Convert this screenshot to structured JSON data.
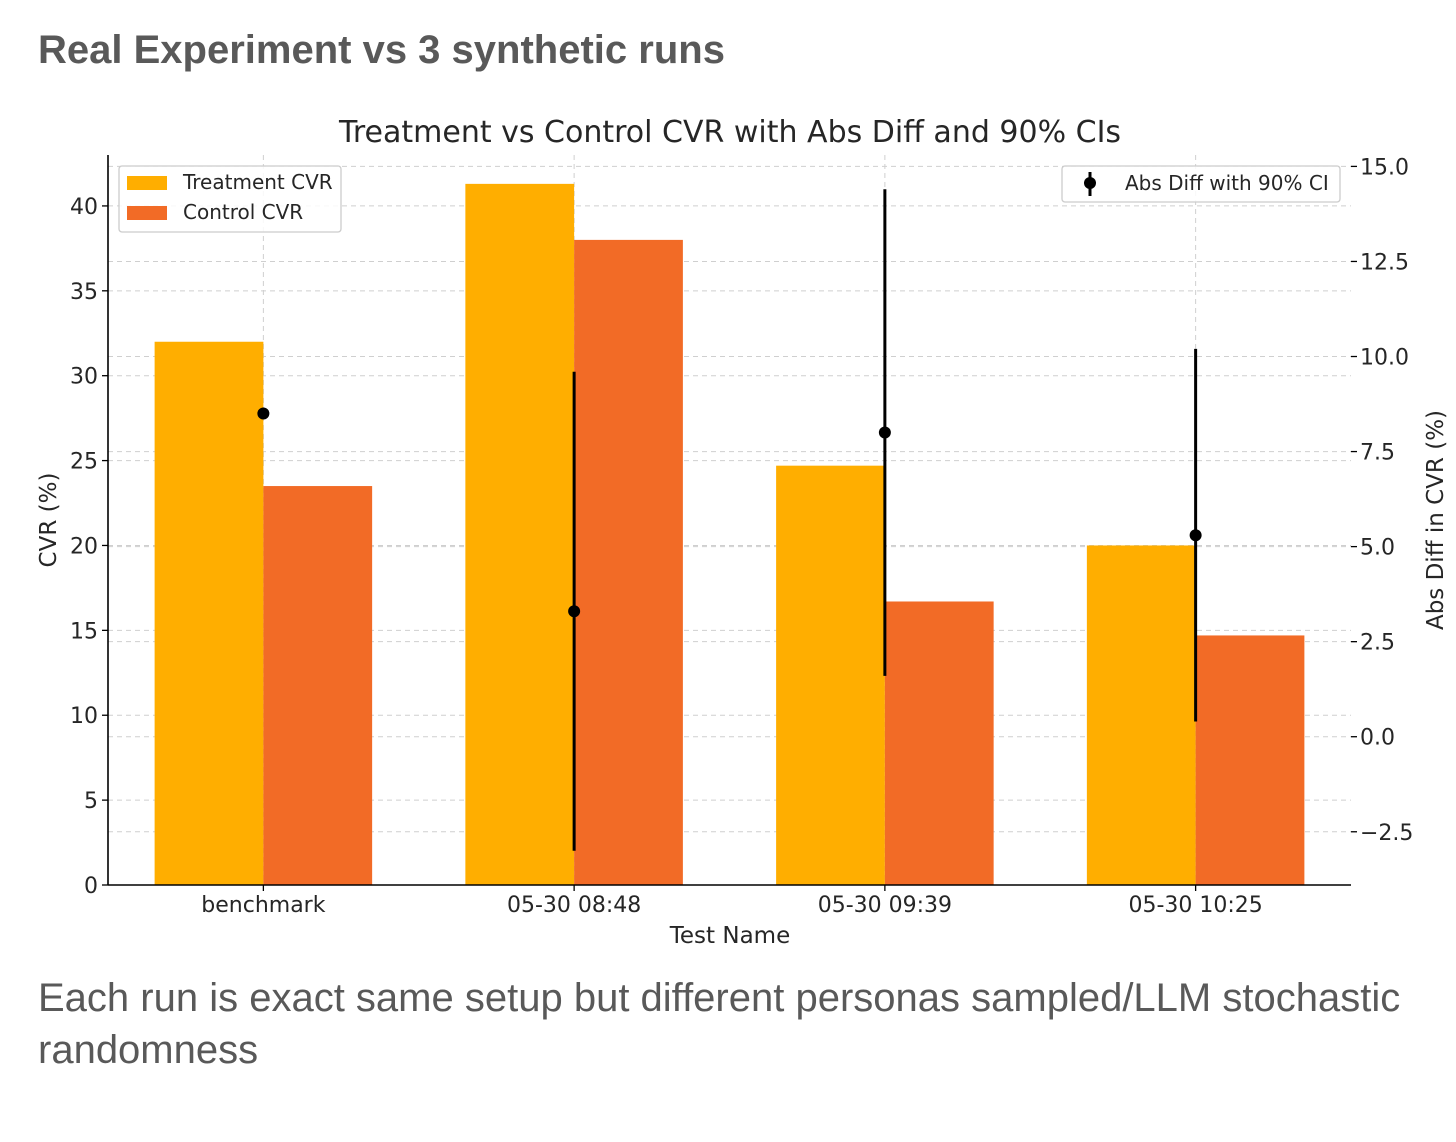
{
  "page": {
    "title": "Real Experiment vs 3 synthetic runs",
    "caption": "Each run is exact same setup but different personas sampled/LLM stochastic randomness"
  },
  "chart_data": {
    "type": "bar",
    "title": "Treatment vs Control CVR with Abs Diff and 90% CIs",
    "xlabel": "Test Name",
    "ylabel": "CVR (%)",
    "y2label": "Abs Diff in CVR (%)",
    "categories": [
      "benchmark",
      "05-30 08:48",
      "05-30 09:39",
      "05-30 10:25"
    ],
    "ylim": [
      0,
      43
    ],
    "y2lim": [
      -3.9,
      15.3
    ],
    "yticks": [
      0,
      5,
      10,
      15,
      20,
      25,
      30,
      35,
      40
    ],
    "y2ticks": [
      -2.5,
      0.0,
      2.5,
      5.0,
      7.5,
      10.0,
      12.5,
      15.0
    ],
    "y2tick_labels": [
      "−2.5",
      "0.0",
      "2.5",
      "5.0",
      "7.5",
      "10.0",
      "12.5",
      "15.0"
    ],
    "series": [
      {
        "name": "Treatment CVR",
        "color": "#FFAE00",
        "values": [
          32.0,
          41.3,
          24.7,
          20.0
        ]
      },
      {
        "name": "Control CVR",
        "color": "#F26B26",
        "values": [
          23.5,
          38.0,
          16.7,
          14.7
        ]
      }
    ],
    "abs_diff": {
      "name": "Abs Diff with 90% CI",
      "color": "#000000",
      "values": [
        8.5,
        3.3,
        8.0,
        5.3
      ],
      "ci_low": [
        8.5,
        -3.0,
        1.6,
        0.4
      ],
      "ci_high": [
        8.5,
        9.6,
        14.4,
        10.2
      ]
    },
    "legend_left": "top-left",
    "legend_right": "top-right",
    "grid": true
  }
}
